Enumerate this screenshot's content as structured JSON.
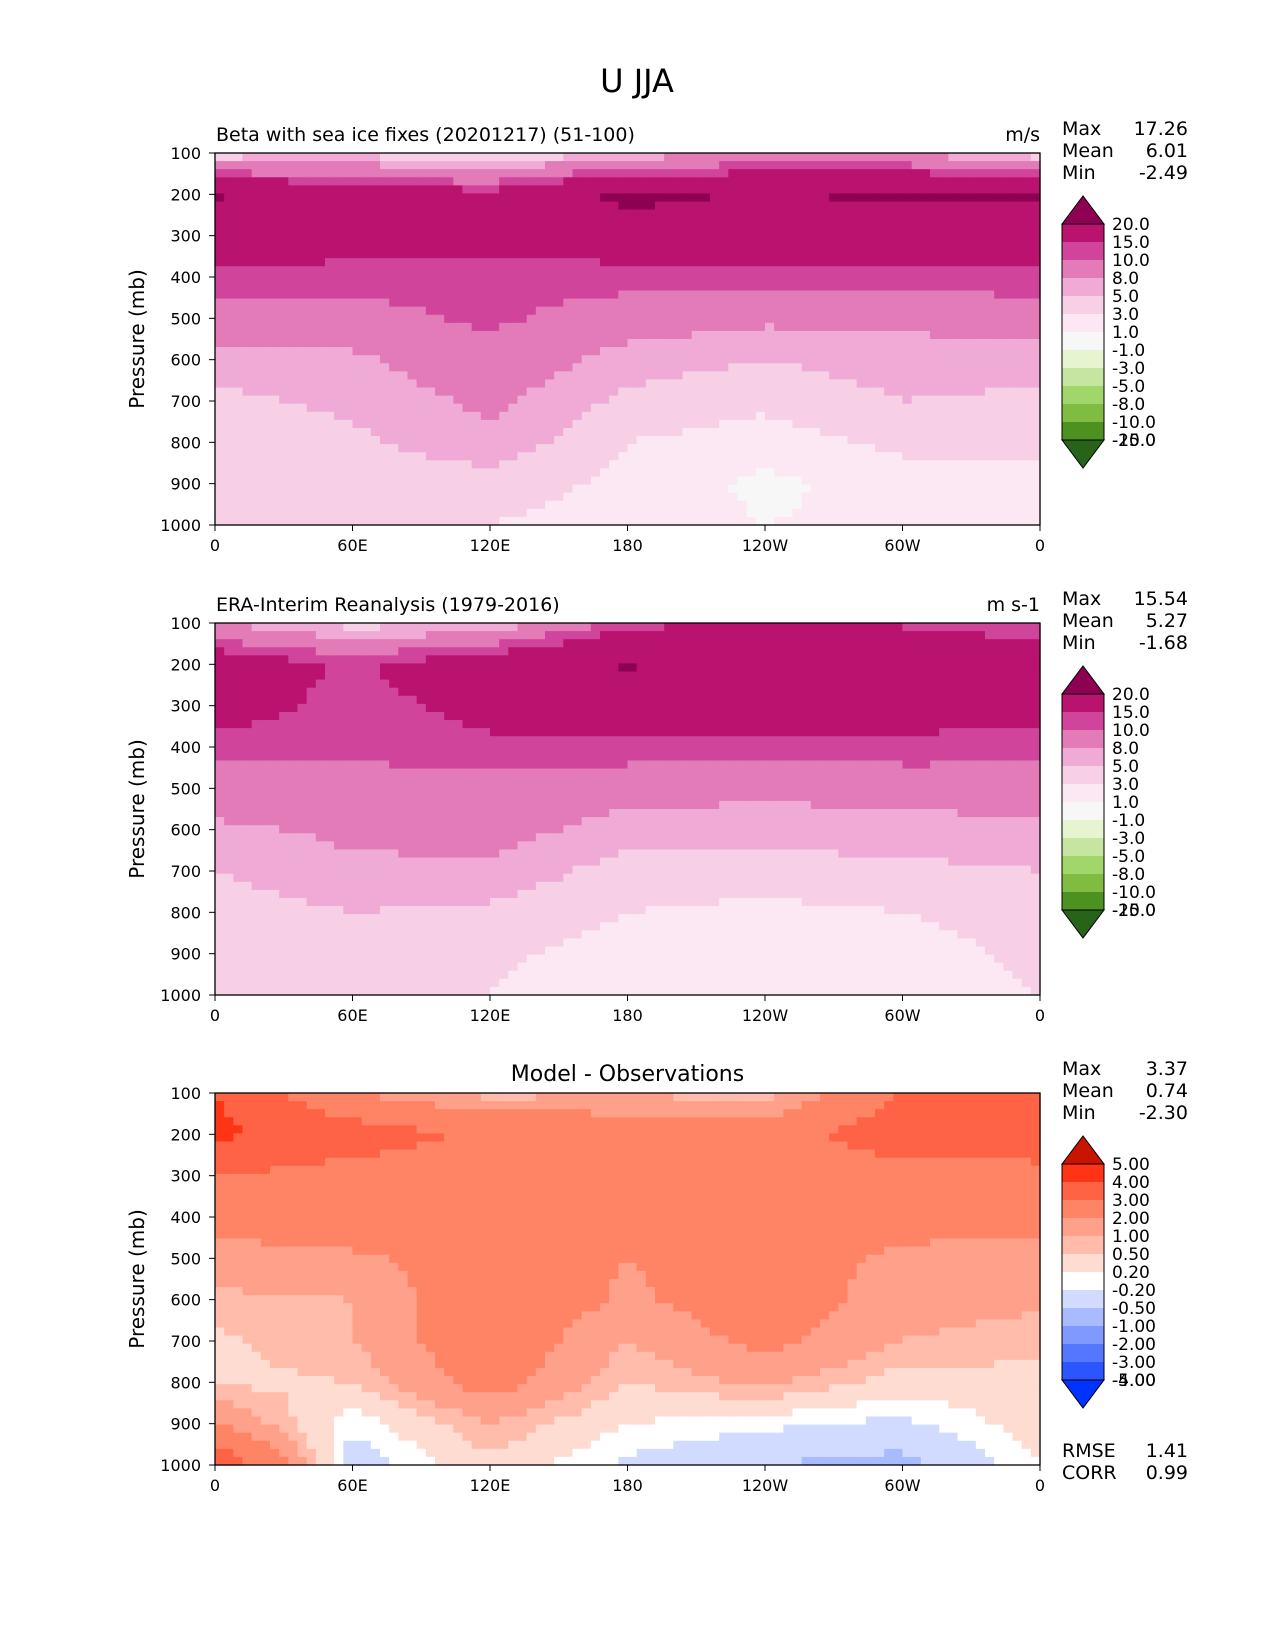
{
  "figure": {
    "title": "U JJA"
  },
  "colors": {
    "full_field": [
      "#276419",
      "#4d9221",
      "#7fbc41",
      "#a1d76a",
      "#c5e5a0",
      "#e6f5d0",
      "#f7f7f7",
      "#fbe8f2",
      "#f7d0e6",
      "#efaad6",
      "#e27bb7",
      "#d0449c",
      "#b9136f",
      "#8e0152"
    ],
    "difference": [
      "#0033ff",
      "#2a55ff",
      "#5577ff",
      "#7f99ff",
      "#a9bbff",
      "#d0dbff",
      "#ffffff",
      "#ffdcd2",
      "#ffbcab",
      "#ffa08a",
      "#ff8466",
      "#ff6346",
      "#ff3414",
      "#c81400"
    ]
  },
  "shared": {
    "ylabel": "Pressure (mb)",
    "y_ticks": [
      "100",
      "200",
      "300",
      "400",
      "500",
      "600",
      "700",
      "800",
      "900",
      "1000"
    ],
    "x_ticks": [
      "0",
      "60E",
      "120E",
      "180",
      "120W",
      "60W",
      "0"
    ]
  },
  "stat_labels": {
    "max": "Max",
    "mean": "Mean",
    "min": "Min",
    "rmse": "RMSE",
    "corr": "CORR"
  },
  "panels": [
    {
      "title_left": "Beta with sea ice fixes (20201217) (51-100)",
      "title_center": "",
      "units": "m/s",
      "stats": {
        "max": "17.26",
        "mean": "6.01",
        "min": "-2.49"
      },
      "colorbar": {
        "labels": [
          "20.0",
          "15.0",
          "10.0",
          "8.0",
          "5.0",
          "3.0",
          "1.0",
          "-1.0",
          "-3.0",
          "-5.0",
          "-8.0",
          "-10.0",
          "-15.0",
          "-20.0"
        ],
        "palette": "full_field"
      }
    },
    {
      "title_left": "ERA-Interim Reanalysis (1979-2016)",
      "title_center": "",
      "units": "m s-1",
      "stats": {
        "max": "15.54",
        "mean": "5.27",
        "min": "-1.68"
      },
      "colorbar": {
        "labels": [
          "20.0",
          "15.0",
          "10.0",
          "8.0",
          "5.0",
          "3.0",
          "1.0",
          "-1.0",
          "-3.0",
          "-5.0",
          "-8.0",
          "-10.0",
          "-15.0",
          "-20.0"
        ],
        "palette": "full_field"
      }
    },
    {
      "title_left": "",
      "title_center": "Model - Observations",
      "units": "",
      "stats": {
        "max": "3.37",
        "mean": "0.74",
        "min": "-2.30",
        "rmse": "1.41",
        "corr": "0.99"
      },
      "colorbar": {
        "labels": [
          "5.00",
          "4.00",
          "3.00",
          "2.00",
          "1.00",
          "0.50",
          "0.20",
          "-0.20",
          "-0.50",
          "-1.00",
          "-2.00",
          "-3.00",
          "-4.00",
          "-5.00"
        ],
        "palette": "difference"
      }
    }
  ],
  "chart_data": [
    {
      "type": "heatmap",
      "title": "Beta with sea ice fixes (20201217) (51-100)",
      "xlabel": "",
      "ylabel": "Pressure (mb)",
      "xlim": [
        0,
        360
      ],
      "ylim": [
        1000,
        100
      ],
      "x": [
        0,
        60,
        120,
        180,
        240,
        300,
        360
      ],
      "x_tick_labels": [
        "0",
        "60E",
        "120E",
        "180",
        "120W",
        "60W",
        "0"
      ],
      "y": [
        100,
        200,
        300,
        400,
        500,
        600,
        700,
        800,
        900,
        1000
      ],
      "values": [
        [
          1.5,
          2.5,
          0.5,
          3.0,
          6.0,
          5.0,
          1.5
        ],
        [
          15.5,
          12.0,
          11.0,
          16.5,
          14.5,
          16.0,
          15.5
        ],
        [
          12.0,
          11.5,
          11.0,
          12.0,
          12.0,
          12.0,
          12.0
        ],
        [
          9.5,
          9.0,
          9.0,
          9.0,
          9.0,
          9.0,
          9.5
        ],
        [
          6.5,
          7.0,
          8.5,
          6.5,
          5.5,
          5.5,
          6.5
        ],
        [
          4.0,
          4.5,
          7.0,
          4.0,
          3.0,
          4.0,
          4.0
        ],
        [
          2.5,
          3.5,
          5.5,
          2.5,
          1.5,
          3.0,
          2.5
        ],
        [
          1.5,
          2.5,
          4.5,
          1.0,
          0.0,
          1.5,
          1.5
        ],
        [
          1.0,
          1.5,
          2.0,
          0.5,
          -1.5,
          0.0,
          0.5
        ],
        [
          2.0,
          1.0,
          1.0,
          0.0,
          -1.0,
          -0.5,
          0.5
        ]
      ],
      "value_levels": [
        -20,
        -15,
        -10,
        -8,
        -5,
        -3,
        -1,
        1,
        3,
        5,
        8,
        10,
        15,
        20
      ],
      "legend": "right"
    },
    {
      "type": "heatmap",
      "title": "ERA-Interim Reanalysis (1979-2016)",
      "xlabel": "",
      "ylabel": "Pressure (mb)",
      "xlim": [
        0,
        360
      ],
      "ylim": [
        1000,
        100
      ],
      "x": [
        0,
        60,
        120,
        180,
        240,
        300,
        360
      ],
      "x_tick_labels": [
        "0",
        "60E",
        "120E",
        "180",
        "120W",
        "60W",
        "0"
      ],
      "y": [
        100,
        200,
        300,
        400,
        500,
        600,
        700,
        800,
        900,
        1000
      ],
      "values": [
        [
          5.0,
          2.0,
          3.0,
          9.0,
          11.0,
          9.5,
          8.0
        ],
        [
          12.5,
          9.5,
          12.5,
          15.5,
          13.0,
          14.5,
          12.5
        ],
        [
          11.5,
          9.0,
          11.0,
          11.5,
          12.0,
          11.0,
          11.5
        ],
        [
          9.0,
          8.5,
          9.5,
          9.5,
          9.0,
          9.5,
          9.0
        ],
        [
          6.5,
          7.0,
          7.0,
          6.0,
          5.5,
          6.0,
          6.5
        ],
        [
          4.5,
          5.5,
          6.0,
          4.0,
          4.0,
          4.0,
          4.5
        ],
        [
          3.0,
          4.5,
          4.5,
          2.0,
          2.0,
          2.5,
          3.0
        ],
        [
          2.0,
          3.0,
          2.5,
          1.0,
          0.5,
          1.0,
          2.0
        ],
        [
          1.5,
          1.5,
          1.5,
          0.0,
          0.0,
          0.0,
          1.5
        ],
        [
          1.0,
          1.0,
          1.0,
          -0.5,
          0.0,
          0.0,
          1.0
        ]
      ],
      "value_levels": [
        -20,
        -15,
        -10,
        -8,
        -5,
        -3,
        -1,
        1,
        3,
        5,
        8,
        10,
        15,
        20
      ],
      "legend": "right"
    },
    {
      "type": "heatmap",
      "title": "Model - Observations",
      "xlabel": "",
      "ylabel": "Pressure (mb)",
      "xlim": [
        0,
        360
      ],
      "ylim": [
        1000,
        100
      ],
      "x": [
        0,
        60,
        120,
        180,
        240,
        300,
        360
      ],
      "x_tick_labels": [
        "0",
        "60E",
        "120E",
        "180",
        "120W",
        "60W",
        "0"
      ],
      "y": [
        100,
        200,
        300,
        400,
        500,
        600,
        700,
        800,
        900,
        1000
      ],
      "values": [
        [
          3.0,
          1.0,
          0.3,
          0.5,
          0.2,
          2.0,
          2.5
        ],
        [
          3.2,
          2.5,
          1.8,
          1.5,
          1.5,
          2.6,
          2.4
        ],
        [
          2.0,
          1.6,
          1.5,
          1.5,
          1.5,
          1.6,
          1.8
        ],
        [
          1.2,
          1.4,
          1.5,
          1.5,
          1.5,
          1.2,
          1.2
        ],
        [
          0.8,
          0.9,
          1.3,
          1.0,
          1.3,
          0.9,
          0.8
        ],
        [
          0.4,
          0.5,
          1.6,
          0.9,
          1.4,
          0.7,
          0.6
        ],
        [
          0.1,
          0.5,
          1.5,
          0.5,
          1.2,
          0.5,
          0.3
        ],
        [
          0.1,
          0.2,
          1.3,
          0.2,
          0.6,
          0.0,
          0.1
        ],
        [
          1.0,
          -0.4,
          0.5,
          -0.2,
          -0.4,
          -0.6,
          0.0
        ],
        [
          3.0,
          -0.8,
          0.1,
          -0.6,
          -1.0,
          -1.2,
          -0.2
        ]
      ],
      "value_levels": [
        -5,
        -4,
        -3,
        -2,
        -1,
        -0.5,
        -0.2,
        0.2,
        0.5,
        1,
        2,
        3,
        4,
        5
      ],
      "legend": "right"
    }
  ]
}
